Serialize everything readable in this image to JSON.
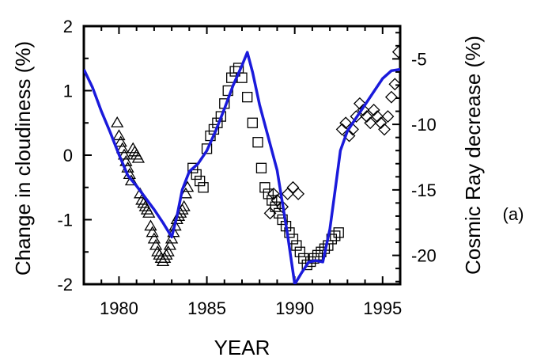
{
  "chart_data": {
    "type": "scatter",
    "xlabel": "YEAR",
    "ylabel_left": "Change in cloudiness (%)",
    "ylabel_right": "Cosmic Ray decrease (%)",
    "panel_label": "(a)",
    "xlim": [
      1978,
      1996
    ],
    "ylim_left": [
      -2,
      2
    ],
    "ylim_right": [
      -22.2,
      -2.5
    ],
    "x_ticks": [
      1980,
      1985,
      1990,
      1995
    ],
    "x_tick_labels": [
      "1980",
      "1985",
      "1990",
      "1995"
    ],
    "y_left_ticks": [
      2,
      1,
      0,
      -1,
      -2
    ],
    "y_left_tick_labels": [
      "2",
      "1",
      "0",
      "-1",
      "-2"
    ],
    "y_right_ticks": [
      -5,
      -10,
      -15,
      -20
    ],
    "y_right_tick_labels": [
      "-5",
      "-10",
      "-15",
      "-20"
    ],
    "grid": false,
    "series": [
      {
        "marker": "triangle",
        "axis": "left",
        "x": [
          1979.9,
          1980.0,
          1980.1,
          1980.2,
          1980.3,
          1980.4,
          1980.5,
          1980.6,
          1980.7,
          1980.8,
          1980.9,
          1981.0,
          1981.1,
          1981.2,
          1981.3,
          1981.4,
          1981.5,
          1981.6,
          1981.7,
          1981.8,
          1981.9,
          1982.0,
          1982.1,
          1982.2,
          1982.3,
          1982.4,
          1982.5,
          1982.6,
          1982.7,
          1982.8,
          1982.9,
          1983.0,
          1983.1,
          1983.2,
          1983.3,
          1983.4,
          1983.5,
          1983.6,
          1983.7,
          1983.8,
          1983.9
        ],
        "y": [
          0.5,
          0.3,
          0.2,
          0.1,
          0.0,
          -0.1,
          -0.2,
          -0.3,
          -0.4,
          0.1,
          0.05,
          0.0,
          -0.05,
          -0.6,
          -0.7,
          -0.75,
          -0.8,
          -0.85,
          -0.9,
          -1.1,
          -1.2,
          -1.3,
          -1.4,
          -1.5,
          -1.55,
          -1.6,
          -1.65,
          -1.6,
          -1.55,
          -1.5,
          -1.4,
          -1.3,
          -1.2,
          -1.1,
          -1.0,
          -0.95,
          -0.9,
          -0.85,
          -0.8,
          -0.6,
          -0.5
        ]
      },
      {
        "marker": "square",
        "axis": "left",
        "x": [
          1984.2,
          1984.4,
          1984.6,
          1984.8,
          1985.0,
          1985.2,
          1985.4,
          1985.6,
          1985.8,
          1986.0,
          1986.2,
          1986.4,
          1986.6,
          1986.8,
          1987.0,
          1987.3,
          1987.6,
          1987.9,
          1988.1,
          1988.3,
          1988.5,
          1988.7,
          1988.9,
          1989.1,
          1989.3,
          1989.5,
          1989.7,
          1989.9,
          1990.1,
          1990.3,
          1990.5,
          1990.7,
          1990.9,
          1991.1,
          1991.3,
          1991.5,
          1991.7,
          1991.9,
          1992.1,
          1992.3,
          1992.5
        ],
        "y": [
          -0.2,
          -0.3,
          -0.4,
          -0.5,
          0.1,
          0.3,
          0.4,
          0.5,
          0.6,
          0.8,
          1.0,
          1.2,
          1.3,
          1.35,
          1.2,
          0.9,
          0.5,
          0.2,
          -0.2,
          -0.5,
          -0.6,
          -0.7,
          -0.8,
          -0.9,
          -1.0,
          -1.1,
          -1.2,
          -1.3,
          -1.4,
          -1.5,
          -1.6,
          -1.7,
          -1.65,
          -1.6,
          -1.55,
          -1.5,
          -1.45,
          -1.4,
          -1.3,
          -1.25,
          -1.2
        ]
      },
      {
        "marker": "diamond",
        "axis": "left",
        "x": [
          1988.6,
          1988.8,
          1989.0,
          1989.3,
          1989.6,
          1989.9,
          1990.2,
          1992.7,
          1992.9,
          1993.1,
          1993.3,
          1993.5,
          1993.7,
          1993.9,
          1994.1,
          1994.3,
          1994.5,
          1994.7,
          1994.9,
          1995.1,
          1995.3,
          1995.5,
          1995.7,
          1995.9
        ],
        "y": [
          -0.9,
          -0.6,
          -0.7,
          -0.8,
          -0.6,
          -0.5,
          -0.6,
          0.4,
          0.5,
          0.3,
          0.4,
          0.6,
          0.8,
          0.7,
          0.6,
          0.5,
          0.7,
          0.6,
          0.5,
          0.4,
          0.6,
          0.9,
          1.1,
          1.6
        ]
      },
      {
        "marker": "line",
        "axis": "right",
        "color": "#1a1adb",
        "x": [
          1978.0,
          1978.5,
          1979.0,
          1979.5,
          1980.0,
          1980.5,
          1981.0,
          1981.5,
          1982.0,
          1982.5,
          1983.0,
          1983.3,
          1983.6,
          1984.0,
          1984.5,
          1985.0,
          1985.5,
          1986.0,
          1986.5,
          1987.0,
          1987.3,
          1987.6,
          1988.0,
          1988.5,
          1989.0,
          1989.3,
          1989.6,
          1990.0,
          1990.4,
          1990.8,
          1991.2,
          1991.6,
          1992.0,
          1992.3,
          1992.6,
          1993.0,
          1993.5,
          1994.0,
          1994.5,
          1995.0,
          1995.5,
          1996.0
        ],
        "y": [
          -5.8,
          -7.2,
          -9.0,
          -10.6,
          -12.3,
          -13.9,
          -14.7,
          -15.6,
          -16.5,
          -17.5,
          -18.6,
          -17.0,
          -15.0,
          -13.6,
          -13.0,
          -12.0,
          -10.5,
          -8.8,
          -7.0,
          -5.5,
          -4.5,
          -6.0,
          -8.5,
          -11.0,
          -13.5,
          -16.0,
          -18.5,
          -22.2,
          -21.3,
          -20.5,
          -20.4,
          -20.5,
          -18.0,
          -15.0,
          -12.0,
          -10.5,
          -9.5,
          -8.5,
          -7.5,
          -6.5,
          -5.9,
          -5.8
        ]
      }
    ]
  }
}
